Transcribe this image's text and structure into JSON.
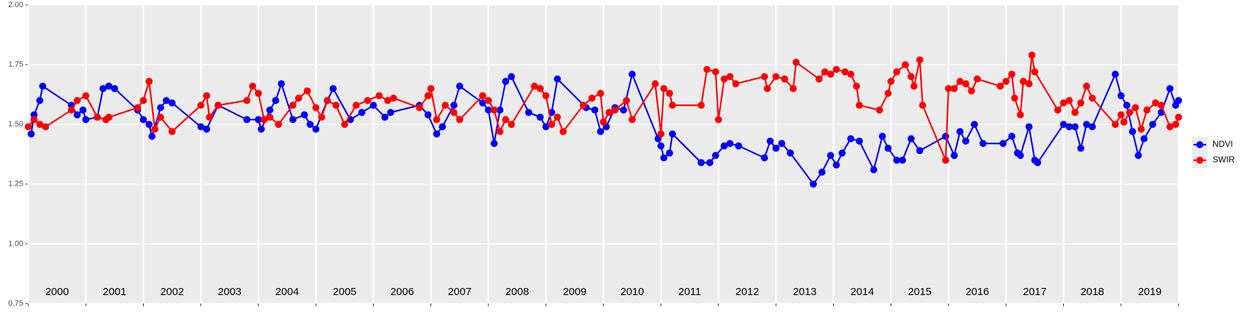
{
  "chart_data": {
    "type": "line",
    "xlim": [
      2000,
      2020
    ],
    "xgrid": [
      2000,
      2001,
      2002,
      2003,
      2004,
      2005,
      2006,
      2007,
      2008,
      2009,
      2010,
      2011,
      2012,
      2013,
      2014,
      2015,
      2016,
      2017,
      2018,
      2019,
      2020
    ],
    "year_labels": [
      {
        "value": 2000.5,
        "label": "2000"
      },
      {
        "value": 2001.5,
        "label": "2001"
      },
      {
        "value": 2002.5,
        "label": "2002"
      },
      {
        "value": 2003.5,
        "label": "2003"
      },
      {
        "value": 2004.5,
        "label": "2004"
      },
      {
        "value": 2005.5,
        "label": "2005"
      },
      {
        "value": 2006.5,
        "label": "2006"
      },
      {
        "value": 2007.5,
        "label": "2007"
      },
      {
        "value": 2008.5,
        "label": "2008"
      },
      {
        "value": 2009.5,
        "label": "2009"
      },
      {
        "value": 2010.5,
        "label": "2010"
      },
      {
        "value": 2011.5,
        "label": "2011"
      },
      {
        "value": 2012.5,
        "label": "2012"
      },
      {
        "value": 2013.5,
        "label": "2013"
      },
      {
        "value": 2014.5,
        "label": "2014"
      },
      {
        "value": 2015.5,
        "label": "2015"
      },
      {
        "value": 2016.5,
        "label": "2016"
      },
      {
        "value": 2017.5,
        "label": "2017"
      },
      {
        "value": 2018.5,
        "label": "2018"
      },
      {
        "value": 2019.5,
        "label": "2019"
      }
    ],
    "ylim": [
      0.75,
      2.0
    ],
    "yticks": [
      0.75,
      {
        "value": 1.0,
        "label": "1.00"
      },
      1.25,
      {
        "value": 1.5,
        "label": "1.50"
      },
      1.75,
      {
        "value": 2.0,
        "label": "2.00"
      }
    ],
    "grid": true,
    "legend": "right",
    "series": [
      {
        "name": "NDVI",
        "color": "#0000ff",
        "x": [
          2000.05,
          2000.1,
          2000.2,
          2000.25,
          2000.75,
          2000.85,
          2000.95,
          2001.0,
          2001.2,
          2001.3,
          2001.4,
          2001.5,
          2001.9,
          2002.0,
          2002.1,
          2002.15,
          2002.3,
          2002.4,
          2002.5,
          2003.0,
          2003.1,
          2003.3,
          2003.8,
          2004.0,
          2004.05,
          2004.2,
          2004.3,
          2004.4,
          2004.6,
          2004.8,
          2004.9,
          2005.0,
          2005.2,
          2005.3,
          2005.6,
          2005.8,
          2006.0,
          2006.2,
          2006.3,
          2006.8,
          2006.95,
          2007.1,
          2007.2,
          2007.4,
          2007.5,
          2007.9,
          2008.0,
          2008.1,
          2008.2,
          2008.3,
          2008.4,
          2008.7,
          2008.9,
          2009.0,
          2009.1,
          2009.2,
          2009.7,
          2009.85,
          2009.95,
          2010.05,
          2010.2,
          2010.35,
          2010.5,
          2010.95,
          2011.0,
          2011.05,
          2011.15,
          2011.2,
          2011.7,
          2011.85,
          2011.95,
          2012.1,
          2012.2,
          2012.35,
          2012.8,
          2012.9,
          2013.0,
          2013.1,
          2013.25,
          2013.65,
          2013.8,
          2013.95,
          2014.05,
          2014.15,
          2014.3,
          2014.45,
          2014.7,
          2014.85,
          2014.95,
          2015.1,
          2015.2,
          2015.35,
          2015.5,
          2015.95,
          2016.1,
          2016.2,
          2016.3,
          2016.45,
          2016.6,
          2016.95,
          2017.1,
          2017.2,
          2017.25,
          2017.4,
          2017.5,
          2017.55,
          2018.0,
          2018.1,
          2018.2,
          2018.3,
          2018.4,
          2018.5,
          2018.9,
          2019.0,
          2019.1,
          2019.2,
          2019.3,
          2019.4,
          2019.55,
          2019.7,
          2019.85,
          2019.95,
          2020.0
        ],
        "values": [
          1.46,
          1.54,
          1.6,
          1.66,
          1.58,
          1.54,
          1.56,
          1.52,
          1.53,
          1.65,
          1.66,
          1.65,
          1.56,
          1.52,
          1.5,
          1.45,
          1.57,
          1.6,
          1.59,
          1.49,
          1.48,
          1.58,
          1.52,
          1.52,
          1.48,
          1.56,
          1.6,
          1.67,
          1.52,
          1.54,
          1.5,
          1.48,
          1.6,
          1.65,
          1.52,
          1.55,
          1.58,
          1.53,
          1.55,
          1.58,
          1.54,
          1.46,
          1.49,
          1.58,
          1.66,
          1.59,
          1.56,
          1.42,
          1.56,
          1.68,
          1.7,
          1.55,
          1.53,
          1.49,
          1.55,
          1.69,
          1.57,
          1.56,
          1.47,
          1.49,
          1.57,
          1.56,
          1.71,
          1.44,
          1.41,
          1.36,
          1.38,
          1.46,
          1.34,
          1.34,
          1.37,
          1.41,
          1.42,
          1.41,
          1.36,
          1.43,
          1.4,
          1.42,
          1.38,
          1.25,
          1.3,
          1.37,
          1.33,
          1.38,
          1.44,
          1.43,
          1.31,
          1.45,
          1.4,
          1.35,
          1.35,
          1.44,
          1.39,
          1.45,
          1.37,
          1.47,
          1.43,
          1.5,
          1.42,
          1.42,
          1.45,
          1.38,
          1.37,
          1.49,
          1.35,
          1.34,
          1.5,
          1.49,
          1.49,
          1.4,
          1.5,
          1.49,
          1.71,
          1.62,
          1.58,
          1.47,
          1.37,
          1.44,
          1.5,
          1.55,
          1.65,
          1.58,
          1.6
        ]
      },
      {
        "name": "SWIR",
        "color": "#ff0000",
        "x": [
          2000.0,
          2000.1,
          2000.2,
          2000.3,
          2000.75,
          2000.85,
          2001.0,
          2001.2,
          2001.35,
          2001.4,
          2001.9,
          2002.0,
          2002.1,
          2002.2,
          2002.3,
          2002.5,
          2003.0,
          2003.1,
          2003.15,
          2003.3,
          2003.8,
          2003.9,
          2004.0,
          2004.1,
          2004.2,
          2004.35,
          2004.6,
          2004.7,
          2004.85,
          2005.0,
          2005.1,
          2005.2,
          2005.35,
          2005.5,
          2005.7,
          2005.9,
          2006.1,
          2006.25,
          2006.35,
          2006.8,
          2006.95,
          2007.0,
          2007.1,
          2007.25,
          2007.4,
          2007.5,
          2007.9,
          2008.0,
          2008.1,
          2008.2,
          2008.3,
          2008.4,
          2008.8,
          2008.9,
          2009.0,
          2009.1,
          2009.2,
          2009.3,
          2009.65,
          2009.8,
          2009.95,
          2010.0,
          2010.1,
          2010.2,
          2010.4,
          2010.5,
          2010.9,
          2011.0,
          2011.05,
          2011.15,
          2011.2,
          2011.7,
          2011.8,
          2011.95,
          2012.0,
          2012.1,
          2012.2,
          2012.3,
          2012.8,
          2012.85,
          2013.0,
          2013.15,
          2013.3,
          2013.35,
          2013.75,
          2013.85,
          2013.95,
          2014.05,
          2014.2,
          2014.3,
          2014.4,
          2014.45,
          2014.8,
          2014.95,
          2015.0,
          2015.1,
          2015.25,
          2015.35,
          2015.4,
          2015.5,
          2015.55,
          2015.95,
          2016.0,
          2016.1,
          2016.2,
          2016.3,
          2016.4,
          2016.5,
          2016.9,
          2017.0,
          2017.1,
          2017.15,
          2017.25,
          2017.3,
          2017.4,
          2017.45,
          2017.5,
          2017.9,
          2018.0,
          2018.1,
          2018.2,
          2018.3,
          2018.4,
          2018.5,
          2018.9,
          2019.0,
          2019.05,
          2019.15,
          2019.25,
          2019.35,
          2019.45,
          2019.6,
          2019.7,
          2019.85,
          2019.95,
          2020.0
        ],
        "values": [
          1.49,
          1.52,
          1.5,
          1.49,
          1.56,
          1.6,
          1.62,
          1.53,
          1.52,
          1.53,
          1.57,
          1.6,
          1.68,
          1.48,
          1.53,
          1.47,
          1.58,
          1.62,
          1.53,
          1.58,
          1.6,
          1.66,
          1.63,
          1.52,
          1.53,
          1.5,
          1.58,
          1.61,
          1.64,
          1.57,
          1.53,
          1.6,
          1.58,
          1.5,
          1.58,
          1.6,
          1.62,
          1.6,
          1.61,
          1.57,
          1.62,
          1.65,
          1.52,
          1.58,
          1.55,
          1.52,
          1.62,
          1.6,
          1.56,
          1.47,
          1.52,
          1.5,
          1.66,
          1.65,
          1.62,
          1.5,
          1.53,
          1.47,
          1.58,
          1.61,
          1.63,
          1.51,
          1.55,
          1.56,
          1.6,
          1.52,
          1.67,
          1.46,
          1.65,
          1.63,
          1.58,
          1.58,
          1.73,
          1.72,
          1.52,
          1.69,
          1.7,
          1.67,
          1.7,
          1.65,
          1.7,
          1.69,
          1.65,
          1.76,
          1.69,
          1.72,
          1.71,
          1.73,
          1.72,
          1.71,
          1.66,
          1.58,
          1.56,
          1.63,
          1.68,
          1.72,
          1.75,
          1.7,
          1.66,
          1.77,
          1.58,
          1.35,
          1.65,
          1.65,
          1.68,
          1.67,
          1.64,
          1.69,
          1.66,
          1.68,
          1.71,
          1.61,
          1.54,
          1.68,
          1.67,
          1.79,
          1.72,
          1.56,
          1.59,
          1.6,
          1.55,
          1.59,
          1.66,
          1.61,
          1.5,
          1.54,
          1.51,
          1.55,
          1.57,
          1.48,
          1.56,
          1.59,
          1.58,
          1.49,
          1.5,
          1.53
        ]
      }
    ]
  }
}
